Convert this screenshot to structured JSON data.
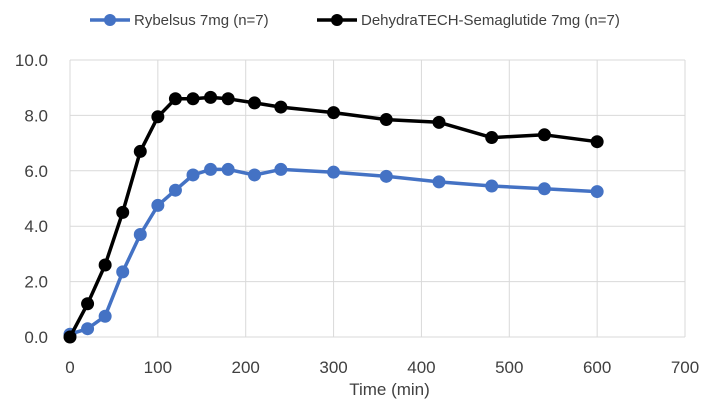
{
  "chart_data": {
    "type": "line",
    "title": "",
    "xlabel": "Time (min)",
    "ylabel": "",
    "xlim": [
      0,
      700
    ],
    "ylim": [
      0,
      10
    ],
    "x_ticks": [
      0,
      100,
      200,
      300,
      400,
      500,
      600,
      700
    ],
    "y_ticks": [
      0,
      2,
      4,
      6,
      8,
      10
    ],
    "x_tick_labels": [
      "0",
      "100",
      "200",
      "300",
      "400",
      "500",
      "600",
      "700"
    ],
    "y_tick_labels": [
      "0.0",
      "2.0",
      "4.0",
      "6.0",
      "8.0",
      "10.0"
    ],
    "grid": true,
    "legend_position": "top",
    "series": [
      {
        "name": "Rybelsus 7mg  (n=7)",
        "color": "#4472c4",
        "x": [
          0,
          20,
          40,
          60,
          80,
          100,
          120,
          140,
          160,
          180,
          210,
          240,
          300,
          360,
          420,
          480,
          540,
          600
        ],
        "y": [
          0.1,
          0.3,
          0.75,
          2.35,
          3.7,
          4.75,
          5.3,
          5.85,
          6.05,
          6.05,
          5.85,
          6.05,
          5.95,
          5.8,
          5.6,
          5.45,
          5.35,
          5.25
        ]
      },
      {
        "name": "DehydraTECH-Semaglutide 7mg (n=7)",
        "color": "#000000",
        "x": [
          0,
          20,
          40,
          60,
          80,
          100,
          120,
          140,
          160,
          180,
          210,
          240,
          300,
          360,
          420,
          480,
          540,
          600
        ],
        "y": [
          0.0,
          1.2,
          2.6,
          4.5,
          6.7,
          7.95,
          8.6,
          8.6,
          8.65,
          8.6,
          8.45,
          8.3,
          8.1,
          7.85,
          7.75,
          7.2,
          7.3,
          7.05
        ]
      }
    ]
  }
}
